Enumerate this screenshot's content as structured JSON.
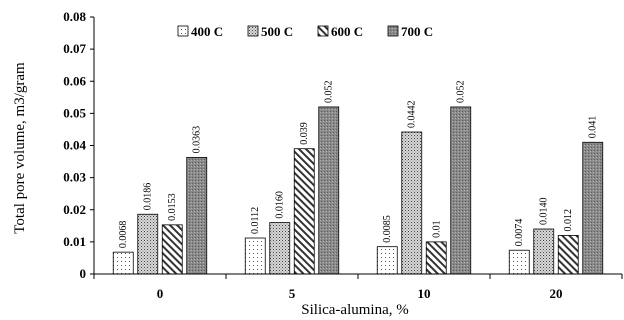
{
  "chart_data": {
    "type": "bar",
    "title": "",
    "xlabel": "Silica-alumina,  %",
    "ylabel": "Total pore volume,  m3/gram",
    "ylim": [
      0,
      0.08
    ],
    "yticks": [
      "0",
      "0.01",
      "0.02",
      "0.03",
      "0.04",
      "0.05",
      "0.06",
      "0.07",
      "0.08"
    ],
    "categories": [
      "0",
      "5",
      "10",
      "20"
    ],
    "legend_position": "top-left",
    "grid": false,
    "series": [
      {
        "name": "400 C",
        "values": [
          0.0068,
          0.0112,
          0.0085,
          0.0074
        ],
        "labels": [
          "0.0068",
          "0.0112",
          "0.0085",
          "0.0074"
        ],
        "pattern": "dots-sparse"
      },
      {
        "name": "500 C",
        "values": [
          0.0186,
          0.016,
          0.0442,
          0.014
        ],
        "labels": [
          "0.0186",
          "0.0160",
          "0.0442",
          "0.0140"
        ],
        "pattern": "dots-dense"
      },
      {
        "name": "600 C",
        "values": [
          0.0153,
          0.039,
          0.01,
          0.012
        ],
        "labels": [
          "0.0153",
          "0.039",
          "0.01",
          "0.012"
        ],
        "pattern": "diagonal"
      },
      {
        "name": "700 C",
        "values": [
          0.0363,
          0.052,
          0.052,
          0.041
        ],
        "labels": [
          "0.0363",
          "0.052",
          "0.052",
          "0.041"
        ],
        "pattern": "gray-speckle"
      }
    ]
  }
}
